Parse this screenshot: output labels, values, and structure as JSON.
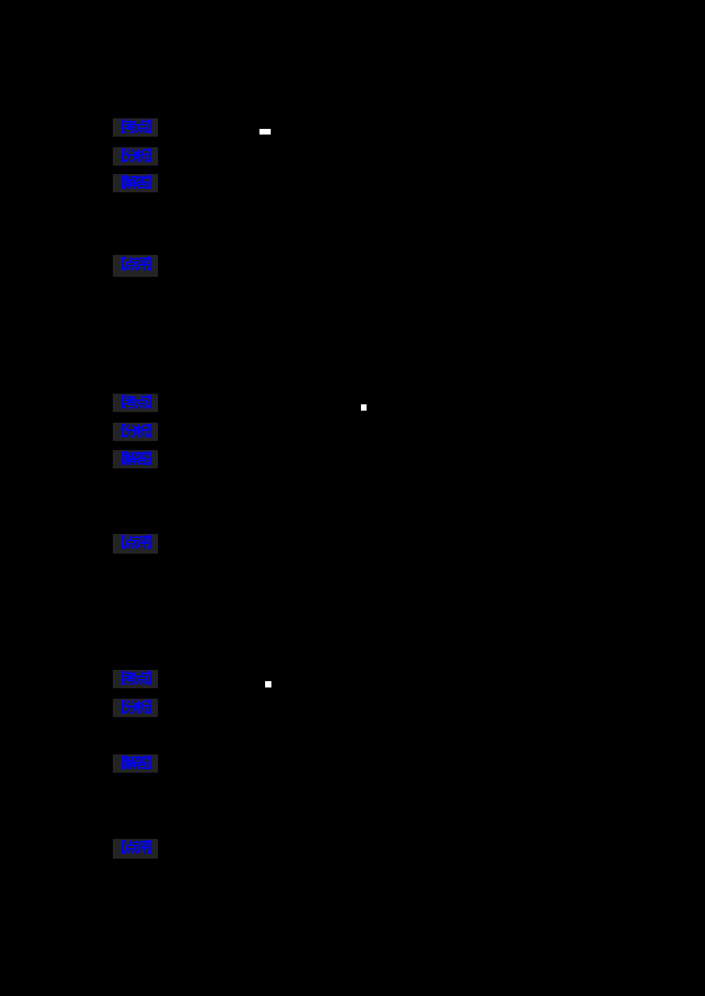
{
  "page": {
    "background_color": "#000000",
    "label_text_color": "#0000ff",
    "label_highlight_color": "#242424",
    "marker_color": "#ffffff"
  },
  "sections": [
    {
      "name": "solution-block-1",
      "labels": [
        "【考点】",
        "【分析】",
        "【解答】",
        "【点评】"
      ]
    },
    {
      "name": "solution-block-2",
      "labels": [
        "【考点】",
        "【分析】",
        "【解答】",
        "【点评】"
      ]
    },
    {
      "name": "solution-block-3",
      "labels": [
        "【考点】",
        "【分析】",
        "【解答】",
        "【点评】"
      ]
    }
  ]
}
